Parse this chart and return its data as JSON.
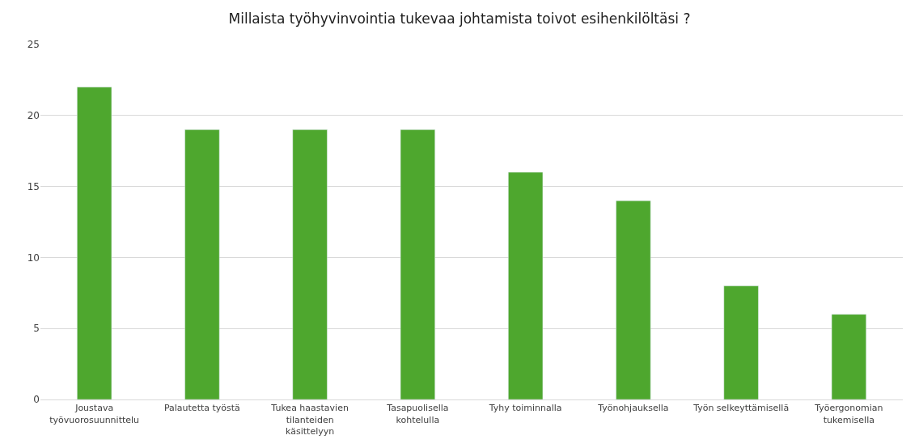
{
  "chart_data": {
    "type": "bar",
    "title": "Millaista työhyvinvointia tukevaa johtamista toivot esihenkilöltäsi ?",
    "categories": [
      "Joustava työvuorosuunnittelu",
      "Palautetta työstä",
      "Tukea haastavien tilanteiden käsittelyyn",
      "Tasapuolisella kohtelulla",
      "Tyhy toiminnalla",
      "Työnohjauksella",
      "Työn selkeyttämisellä",
      "Työergonomian tukemisella"
    ],
    "values": [
      22,
      19,
      19,
      19,
      16,
      14,
      8,
      6
    ],
    "color": "#4ea72e",
    "ylim": [
      0,
      25
    ],
    "yticks": [
      0,
      5,
      10,
      15,
      20,
      25
    ],
    "grid": "y"
  }
}
